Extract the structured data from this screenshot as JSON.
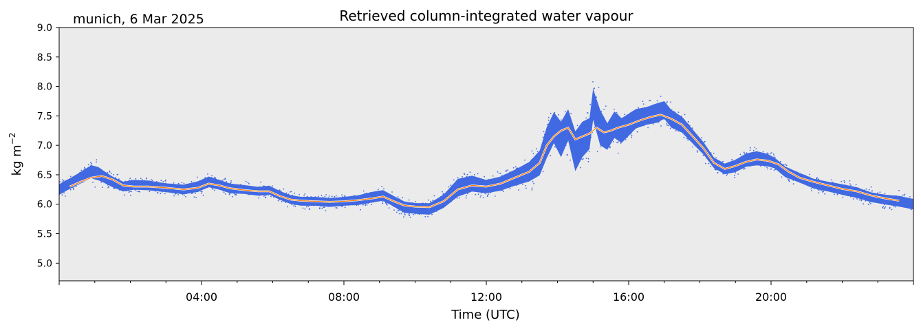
{
  "chart_data": {
    "type": "scatter",
    "title": "Retrieved column-integrated water vapour",
    "location_label": "munich, 6 Mar 2025",
    "xlabel": "Time (UTC)",
    "ylabel": "kg m",
    "ylabel_superscript": "−2",
    "x_unit": "hours UTC",
    "xlim": [
      0,
      24
    ],
    "ylim": [
      4.7,
      9.0
    ],
    "yticks": [
      "5.0",
      "5.5",
      "6.0",
      "6.5",
      "7.0",
      "7.5",
      "8.0",
      "8.5",
      "9.0"
    ],
    "ytick_values": [
      5.0,
      5.5,
      6.0,
      6.5,
      7.0,
      7.5,
      8.0,
      8.5,
      9.0
    ],
    "xticks": [
      "04:00",
      "08:00",
      "12:00",
      "16:00",
      "20:00"
    ],
    "xtick_values": [
      4,
      8,
      12,
      16,
      20
    ],
    "background_color": "#ebebeb",
    "grid": false,
    "legend": "none",
    "series": [
      {
        "kind": "scatter-band",
        "color": "#4169e1",
        "x": [
          0.0,
          0.3,
          0.6,
          0.9,
          1.1,
          1.3,
          1.5,
          1.8,
          2.1,
          2.5,
          3.0,
          3.5,
          3.9,
          4.2,
          4.5,
          4.8,
          5.2,
          5.6,
          5.9,
          6.2,
          6.5,
          6.8,
          7.2,
          7.6,
          8.0,
          8.4,
          8.8,
          9.1,
          9.4,
          9.7,
          10.0,
          10.4,
          10.8,
          11.2,
          11.6,
          12.0,
          12.4,
          12.8,
          13.2,
          13.5,
          13.7,
          13.9,
          14.1,
          14.3,
          14.5,
          14.7,
          14.9,
          15.0,
          15.2,
          15.4,
          15.6,
          15.8,
          16.0,
          16.2,
          16.5,
          16.8,
          17.0,
          17.2,
          17.5,
          17.8,
          18.1,
          18.4,
          18.7,
          19.0,
          19.3,
          19.6,
          19.9,
          20.1,
          20.4,
          20.8,
          21.2,
          21.6,
          22.0,
          22.4,
          22.8,
          23.2,
          23.6,
          24.0
        ],
        "values": [
          6.25,
          6.35,
          6.45,
          6.55,
          6.52,
          6.45,
          6.38,
          6.3,
          6.33,
          6.32,
          6.28,
          6.25,
          6.3,
          6.38,
          6.33,
          6.27,
          6.25,
          6.22,
          6.24,
          6.15,
          6.08,
          6.05,
          6.05,
          6.03,
          6.05,
          6.07,
          6.12,
          6.15,
          6.05,
          5.95,
          5.93,
          5.92,
          6.05,
          6.28,
          6.35,
          6.3,
          6.35,
          6.45,
          6.55,
          6.7,
          7.05,
          7.3,
          7.1,
          7.35,
          6.9,
          7.1,
          7.2,
          7.7,
          7.3,
          7.15,
          7.35,
          7.25,
          7.35,
          7.45,
          7.5,
          7.55,
          7.6,
          7.45,
          7.35,
          7.15,
          6.95,
          6.7,
          6.6,
          6.65,
          6.75,
          6.78,
          6.75,
          6.7,
          6.55,
          6.45,
          6.35,
          6.3,
          6.25,
          6.2,
          6.12,
          6.08,
          6.05,
          6.0
        ],
        "spread": [
          0.12,
          0.12,
          0.13,
          0.15,
          0.15,
          0.13,
          0.12,
          0.11,
          0.11,
          0.11,
          0.1,
          0.11,
          0.12,
          0.12,
          0.11,
          0.11,
          0.1,
          0.1,
          0.1,
          0.1,
          0.1,
          0.1,
          0.1,
          0.1,
          0.1,
          0.11,
          0.12,
          0.12,
          0.12,
          0.13,
          0.12,
          0.13,
          0.15,
          0.2,
          0.18,
          0.15,
          0.16,
          0.18,
          0.22,
          0.28,
          0.35,
          0.35,
          0.4,
          0.35,
          0.45,
          0.4,
          0.35,
          0.35,
          0.4,
          0.3,
          0.3,
          0.28,
          0.25,
          0.22,
          0.2,
          0.22,
          0.2,
          0.2,
          0.18,
          0.16,
          0.14,
          0.12,
          0.12,
          0.14,
          0.15,
          0.16,
          0.14,
          0.12,
          0.12,
          0.11,
          0.11,
          0.11,
          0.12,
          0.12,
          0.11,
          0.11,
          0.12,
          0.12
        ]
      },
      {
        "kind": "line",
        "color": "#ff7f0e",
        "x": [
          0.3,
          0.6,
          0.9,
          1.2,
          1.5,
          1.8,
          2.1,
          2.5,
          3.0,
          3.5,
          3.9,
          4.2,
          4.5,
          4.8,
          5.2,
          5.6,
          5.9,
          6.2,
          6.5,
          6.8,
          7.2,
          7.6,
          8.0,
          8.4,
          8.8,
          9.1,
          9.4,
          9.7,
          10.0,
          10.4,
          10.8,
          11.2,
          11.6,
          12.0,
          12.4,
          12.8,
          13.2,
          13.5,
          13.7,
          13.9,
          14.1,
          14.3,
          14.5,
          14.7,
          14.9,
          15.1,
          15.3,
          15.5,
          15.7,
          16.0,
          16.3,
          16.6,
          16.9,
          17.2,
          17.5,
          17.8,
          18.1,
          18.4,
          18.7,
          19.0,
          19.3,
          19.6,
          19.9,
          20.2,
          20.5,
          20.8,
          21.2,
          21.6,
          22.0,
          22.4,
          22.8,
          23.2,
          23.6
        ],
        "values": [
          6.3,
          6.38,
          6.45,
          6.48,
          6.42,
          6.32,
          6.3,
          6.3,
          6.28,
          6.25,
          6.28,
          6.35,
          6.32,
          6.27,
          6.24,
          6.22,
          6.22,
          6.14,
          6.08,
          6.06,
          6.05,
          6.04,
          6.05,
          6.07,
          6.1,
          6.13,
          6.05,
          5.98,
          5.96,
          5.95,
          6.05,
          6.25,
          6.32,
          6.3,
          6.35,
          6.45,
          6.55,
          6.7,
          7.0,
          7.15,
          7.25,
          7.3,
          7.1,
          7.15,
          7.2,
          7.3,
          7.22,
          7.25,
          7.3,
          7.35,
          7.42,
          7.48,
          7.52,
          7.45,
          7.35,
          7.15,
          6.95,
          6.7,
          6.6,
          6.65,
          6.72,
          6.76,
          6.74,
          6.68,
          6.55,
          6.45,
          6.38,
          6.32,
          6.26,
          6.22,
          6.15,
          6.1,
          6.06
        ]
      }
    ]
  }
}
